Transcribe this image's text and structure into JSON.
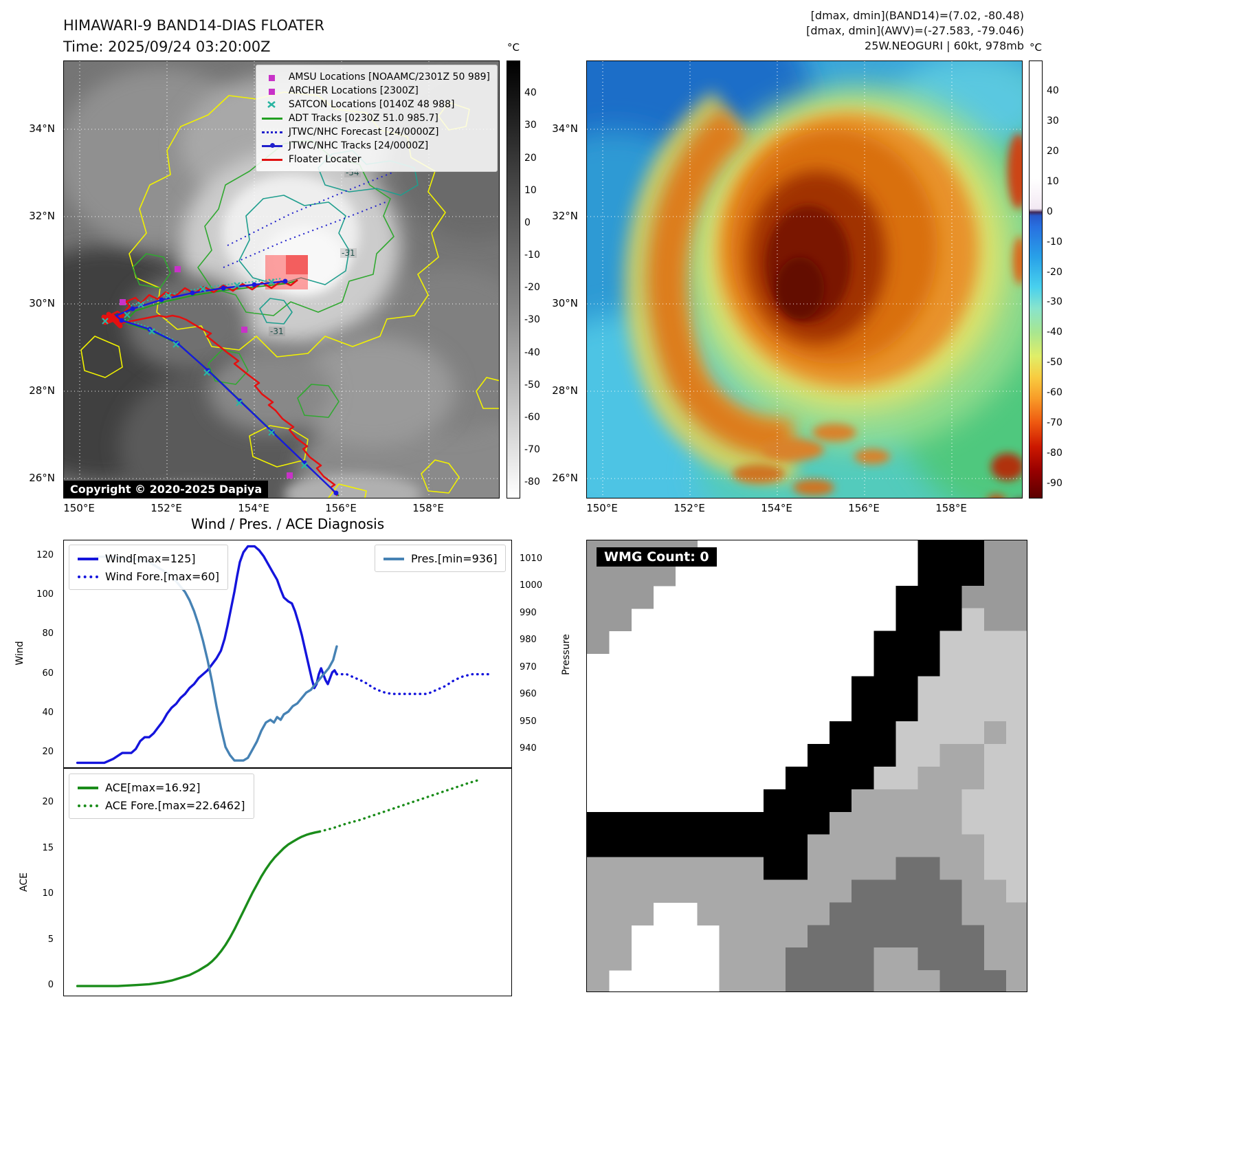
{
  "panels": {
    "band14": {
      "title": "HIMAWARI-9 BAND14-DIAS FLOATER",
      "subtitle": "Time: 2025/09/24 03:20:00Z",
      "copyright": "Copyright © 2020-2025 Dapiya",
      "lat_ticks": [
        "34°N",
        "32°N",
        "30°N",
        "28°N",
        "26°N"
      ],
      "lon_ticks": [
        "150°E",
        "152°E",
        "154°E",
        "156°E",
        "158°E"
      ],
      "contour_labels": [
        "-54",
        "-31",
        "-31"
      ],
      "legend": [
        {
          "label": "AMSU Locations [NOAAMC/2301Z 50 989]",
          "marker": "square",
          "color": "#c832c8"
        },
        {
          "label": "ARCHER Locations [2300Z]",
          "marker": "square",
          "color": "#c832c8"
        },
        {
          "label": "SATCON Locations [0140Z 48 988]",
          "marker": "x",
          "color": "#28b4a0"
        },
        {
          "label": "ADT Tracks [0230Z 51.0 985.7]",
          "marker": "line",
          "color": "#22a022"
        },
        {
          "label": "JTWC/NHC Forecast [24/0000Z]",
          "marker": "dotted-line",
          "color": "#2020cc"
        },
        {
          "label": "JTWC/NHC Tracks [24/0000Z]",
          "marker": "line-dot",
          "color": "#2020cc"
        },
        {
          "label": "Floater Locater",
          "marker": "line",
          "color": "#e01010"
        }
      ],
      "colorbar": {
        "unit": "°C",
        "vmax": 50,
        "vmin": -85,
        "ticks": [
          40,
          30,
          20,
          10,
          0,
          -10,
          -20,
          -30,
          -40,
          -50,
          -60,
          -70,
          -80
        ]
      }
    },
    "awv": {
      "header_lines": [
        "[dmax, dmin](BAND14)=(7.02, -80.48)",
        "[dmax, dmin](AWV)=(-27.583, -79.046)",
        "25W.NEOGURI | 60kt, 978mb"
      ],
      "lat_ticks": [
        "34°N",
        "32°N",
        "30°N",
        "28°N",
        "26°N"
      ],
      "lon_ticks": [
        "150°E",
        "152°E",
        "154°E",
        "156°E",
        "158°E"
      ],
      "colorbar": {
        "unit": "°C",
        "vmax": 50,
        "vmin": -95,
        "ticks": [
          40,
          30,
          20,
          10,
          0,
          -10,
          -20,
          -30,
          -40,
          -50,
          -60,
          -70,
          -80,
          -90
        ]
      }
    },
    "diagnosis": {
      "title": "Wind / Pres. / ACE Diagnosis",
      "ylabel_wind": "Wind",
      "ylabel_pressure": "Pressure",
      "ylabel_ace": "ACE"
    },
    "wmg": {
      "label": "WMG Count: 0"
    }
  },
  "wmg_mask": {
    "cols": 20,
    "rows": 20,
    "palette": {
      "w": "#ffffff",
      "g": "#9a9a9a",
      "m": "#a9a9a9",
      "l": "#c9c9c9",
      "G": "#707070",
      "b": "#000000"
    },
    "grid": [
      "gggggwwwwwwwwwwbbbgg",
      "ggggwwwwwwwwwwwbbbgg",
      "gggwwwwwwwwwwwbbbggg",
      "ggwwwwwwwwwwwwbbblgg",
      "gwwwwwwwwwwwwbbbllll",
      "wwwwwwwwwwwwwbbbllll",
      "wwwwwwwwwwwwbbblllll",
      "wwwwwwwwwwwwbbblllll",
      "wwwwwwwwwwwbbbllllml",
      "wwwwwwwwwwbbbbllmmll",
      "wwwwwwwwwbbbbllmmmll",
      "wwwwwwwwbbbbmmmmmlll",
      "bbbbbbbbbbbmmmmmmlll",
      "bbbbbbbbbbmmmmmmmmll",
      "mmmmmmmmbbmmmmGGmmll",
      "mmmmmmmmmmmmGGGGGmml",
      "mmmwwmmmmmmGGGGGGmmm",
      "mmwwwwmmmmGGGGGGGGmm",
      "mmwwwwmmmGGGGmmGGGmm",
      "mwwwwwmmmGGGGmmmGGGm"
    ]
  },
  "chart_data": [
    {
      "type": "line",
      "name": "wind_pressure",
      "xlim": [
        0,
        100
      ],
      "ylim_left": [
        12,
        128
      ],
      "ylim_right": [
        933,
        1017
      ],
      "yticks_left": [
        20,
        40,
        60,
        80,
        100,
        120
      ],
      "yticks_right": [
        940,
        950,
        960,
        970,
        980,
        990,
        1000,
        1010
      ],
      "series": [
        {
          "name": "Wind[max=125]",
          "axis": "left",
          "style": "solid",
          "color": "#1414dc",
          "points": [
            [
              3,
              15
            ],
            [
              7,
              15
            ],
            [
              9,
              15
            ],
            [
              11,
              17
            ],
            [
              13,
              20
            ],
            [
              15,
              20
            ],
            [
              16,
              22
            ],
            [
              17,
              26
            ],
            [
              18,
              28
            ],
            [
              19,
              28
            ],
            [
              20,
              30
            ],
            [
              21,
              33
            ],
            [
              22,
              36
            ],
            [
              23,
              40
            ],
            [
              24,
              43
            ],
            [
              25,
              45
            ],
            [
              26,
              48
            ],
            [
              27,
              50
            ],
            [
              28,
              53
            ],
            [
              29,
              55
            ],
            [
              30,
              58
            ],
            [
              31,
              60
            ],
            [
              32,
              62
            ],
            [
              33,
              65
            ],
            [
              34,
              68
            ],
            [
              35,
              72
            ],
            [
              35.8,
              78
            ],
            [
              36.5,
              85
            ],
            [
              37.2,
              93
            ],
            [
              38,
              102
            ],
            [
              38.6,
              110
            ],
            [
              39.2,
              117
            ],
            [
              40,
              122
            ],
            [
              41,
              125
            ],
            [
              42.5,
              125
            ],
            [
              43.5,
              123
            ],
            [
              44.5,
              120
            ],
            [
              45.5,
              116
            ],
            [
              46.5,
              112
            ],
            [
              47.5,
              108
            ],
            [
              48.3,
              103
            ],
            [
              49,
              99
            ],
            [
              50,
              97
            ],
            [
              50.8,
              96
            ],
            [
              51.5,
              92
            ],
            [
              52.3,
              86
            ],
            [
              53,
              80
            ],
            [
              53.6,
              74
            ],
            [
              54.2,
              68
            ],
            [
              54.8,
              62
            ],
            [
              55.3,
              57
            ],
            [
              55.8,
              53
            ],
            [
              56.3,
              55
            ],
            [
              56.8,
              60
            ],
            [
              57.3,
              63
            ],
            [
              57.8,
              60
            ],
            [
              58.3,
              57
            ],
            [
              58.8,
              55
            ],
            [
              59.3,
              58
            ],
            [
              59.8,
              61
            ],
            [
              60.3,
              62
            ],
            [
              60.8,
              60
            ]
          ]
        },
        {
          "name": "Wind Fore.[max=60]",
          "axis": "left",
          "style": "dotted",
          "color": "#1414dc",
          "points": [
            [
              60.8,
              60
            ],
            [
              63,
              60
            ],
            [
              65,
              58
            ],
            [
              67,
              56
            ],
            [
              69,
              53
            ],
            [
              71,
              51
            ],
            [
              73,
              50
            ],
            [
              75,
              50
            ],
            [
              77,
              50
            ],
            [
              79,
              50
            ],
            [
              81,
              50
            ],
            [
              83,
              52
            ],
            [
              85,
              54
            ],
            [
              87,
              57
            ],
            [
              89,
              59
            ],
            [
              91,
              60
            ],
            [
              93,
              60
            ],
            [
              95,
              60
            ]
          ]
        },
        {
          "name": "Pres.[min=936]",
          "axis": "right",
          "style": "solid",
          "color": "#4682b4",
          "points": [
            [
              7,
              1011
            ],
            [
              11,
              1011
            ],
            [
              14,
              1010
            ],
            [
              17,
              1010
            ],
            [
              19,
              1009
            ],
            [
              21,
              1007
            ],
            [
              23,
              1005
            ],
            [
              25,
              1002
            ],
            [
              26,
              1000
            ],
            [
              27,
              998
            ],
            [
              28,
              995
            ],
            [
              29,
              991
            ],
            [
              30,
              986
            ],
            [
              31,
              980
            ],
            [
              32,
              973
            ],
            [
              33,
              965
            ],
            [
              34,
              956
            ],
            [
              35,
              948
            ],
            [
              36,
              941
            ],
            [
              37,
              938
            ],
            [
              38,
              936
            ],
            [
              39,
              936
            ],
            [
              40,
              936
            ],
            [
              41,
              937
            ],
            [
              42,
              940
            ],
            [
              43,
              943
            ],
            [
              44,
              947
            ],
            [
              45,
              950
            ],
            [
              46,
              951
            ],
            [
              46.8,
              950
            ],
            [
              47.5,
              952
            ],
            [
              48.3,
              951
            ],
            [
              49,
              953
            ],
            [
              50,
              954
            ],
            [
              51,
              956
            ],
            [
              52,
              957
            ],
            [
              53,
              959
            ],
            [
              54,
              961
            ],
            [
              55,
              962
            ],
            [
              56,
              964
            ],
            [
              57,
              966
            ],
            [
              58,
              968
            ],
            [
              59,
              970
            ],
            [
              60,
              973
            ],
            [
              60.8,
              978
            ]
          ]
        }
      ]
    },
    {
      "type": "line",
      "name": "ace",
      "xlim": [
        0,
        100
      ],
      "ylim_left": [
        -1.2,
        23.8
      ],
      "yticks_left": [
        0,
        5,
        10,
        15,
        20
      ],
      "series": [
        {
          "name": "ACE[max=16.92]",
          "axis": "left",
          "style": "solid",
          "color": "#1a8c1a",
          "points": [
            [
              3,
              0
            ],
            [
              8,
              0
            ],
            [
              12,
              0
            ],
            [
              16,
              0.1
            ],
            [
              19,
              0.2
            ],
            [
              22,
              0.4
            ],
            [
              24,
              0.6
            ],
            [
              26,
              0.9
            ],
            [
              28,
              1.2
            ],
            [
              30,
              1.7
            ],
            [
              32,
              2.3
            ],
            [
              33,
              2.7
            ],
            [
              34,
              3.2
            ],
            [
              35,
              3.8
            ],
            [
              36,
              4.5
            ],
            [
              37,
              5.3
            ],
            [
              38,
              6.2
            ],
            [
              39,
              7.2
            ],
            [
              40,
              8.2
            ],
            [
              41,
              9.2
            ],
            [
              42,
              10.2
            ],
            [
              43,
              11.1
            ],
            [
              44,
              12.0
            ],
            [
              45,
              12.8
            ],
            [
              46,
              13.5
            ],
            [
              47,
              14.1
            ],
            [
              48,
              14.6
            ],
            [
              49,
              15.1
            ],
            [
              50,
              15.5
            ],
            [
              51,
              15.8
            ],
            [
              52,
              16.1
            ],
            [
              53,
              16.35
            ],
            [
              54,
              16.55
            ],
            [
              55,
              16.7
            ],
            [
              56,
              16.82
            ],
            [
              57,
              16.92
            ]
          ]
        },
        {
          "name": "ACE Fore.[max=22.6462]",
          "axis": "left",
          "style": "dotted",
          "color": "#1a8c1a",
          "points": [
            [
              57,
              16.92
            ],
            [
              60,
              17.3
            ],
            [
              63,
              17.8
            ],
            [
              66,
              18.2
            ],
            [
              69,
              18.7
            ],
            [
              72,
              19.2
            ],
            [
              75,
              19.7
            ],
            [
              78,
              20.2
            ],
            [
              81,
              20.7
            ],
            [
              84,
              21.2
            ],
            [
              87,
              21.7
            ],
            [
              90,
              22.2
            ],
            [
              93,
              22.65
            ]
          ]
        }
      ]
    }
  ]
}
